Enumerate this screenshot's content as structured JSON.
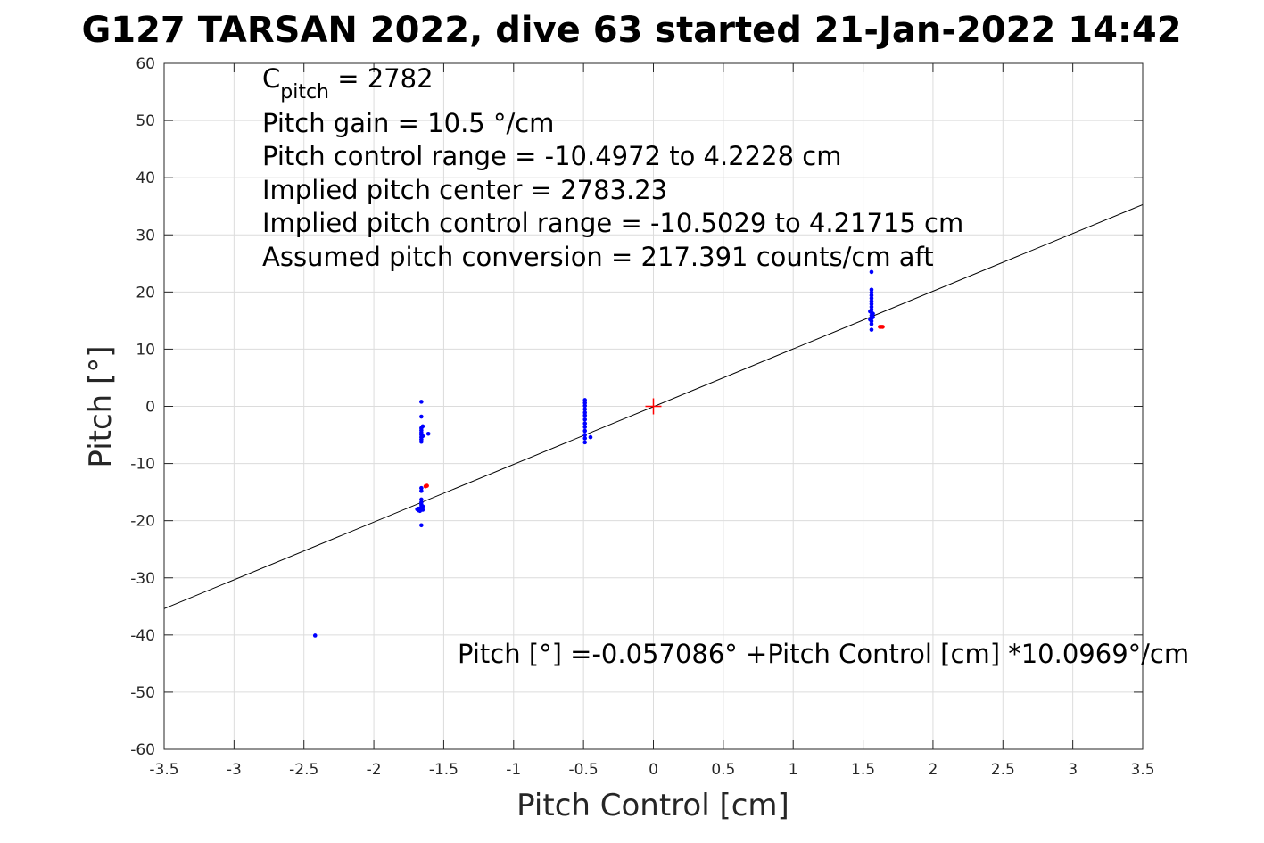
{
  "chart_data": {
    "type": "scatter",
    "title": "G127 TARSAN 2022, dive 63 started 21-Jan-2022 14:42",
    "xlabel": "Pitch Control [cm]",
    "ylabel": "Pitch [°]",
    "xlim": [
      -3.5,
      3.5
    ],
    "ylim": [
      -60,
      60
    ],
    "xticks": [
      -3.5,
      -3,
      -2.5,
      -2,
      -1.5,
      -1,
      -0.5,
      0,
      0.5,
      1,
      1.5,
      2,
      2.5,
      3,
      3.5
    ],
    "xtick_labels": [
      "-3.5",
      "-3",
      "-2.5",
      "-2",
      "-1.5",
      "-1",
      "-0.5",
      "0",
      "0.5",
      "1",
      "1.5",
      "2",
      "2.5",
      "3",
      "3.5"
    ],
    "yticks": [
      -60,
      -50,
      -40,
      -30,
      -20,
      -10,
      0,
      10,
      20,
      30,
      40,
      50,
      60
    ],
    "ytick_labels": [
      "-60",
      "-50",
      "-40",
      "-30",
      "-20",
      "-10",
      "0",
      "10",
      "20",
      "30",
      "40",
      "50",
      "60"
    ],
    "grid": true,
    "colors": {
      "blue": "#0000ff",
      "red": "#ff0000",
      "fit": "#000000",
      "grid": "#dcdcdc",
      "axis": "#262626"
    },
    "annotations": {
      "c_pitch_main": "C",
      "c_pitch_sub": "pitch",
      "c_pitch_value": " = 2782",
      "lines": [
        "Pitch gain = 10.5 °/cm",
        "Pitch control range = -10.4972 to 4.2228 cm",
        "Implied pitch center = 2783.23",
        "Implied pitch control range = -10.5029 to 4.21715 cm",
        "Assumed pitch conversion = 217.391 counts/cm aft"
      ],
      "equation": "Pitch [°] =-0.057086° +Pitch Control [cm] *10.0969°/cm"
    },
    "fit_line": {
      "intercept": -0.057086,
      "slope": 10.0969
    },
    "center_marker": {
      "x": 0,
      "y": 0,
      "color": "red",
      "shape": "plus"
    },
    "series": [
      {
        "color": "blue",
        "points": [
          [
            -2.42,
            -40.1
          ],
          [
            -1.66,
            0.8
          ],
          [
            -1.66,
            -1.8
          ],
          [
            -1.66,
            -3.8
          ],
          [
            -1.66,
            -4.2
          ],
          [
            -1.66,
            -4.6
          ],
          [
            -1.66,
            -5.0
          ],
          [
            -1.66,
            -5.4
          ],
          [
            -1.66,
            -5.8
          ],
          [
            -1.66,
            -6.2
          ],
          [
            -1.65,
            -3.5
          ],
          [
            -1.65,
            -5.2
          ],
          [
            -1.61,
            -4.8
          ],
          [
            -1.66,
            -14.3
          ],
          [
            -1.66,
            -14.8
          ],
          [
            -1.66,
            -16.3
          ],
          [
            -1.66,
            -16.8
          ],
          [
            -1.66,
            -17.2
          ],
          [
            -1.66,
            -17.6
          ],
          [
            -1.67,
            -18.0
          ],
          [
            -1.67,
            -18.3
          ],
          [
            -1.68,
            -17.9
          ],
          [
            -1.68,
            -18.2
          ],
          [
            -1.65,
            -17.5
          ],
          [
            -1.65,
            -18.1
          ],
          [
            -1.69,
            -18.0
          ],
          [
            -1.66,
            -20.8
          ],
          [
            -0.49,
            1.1
          ],
          [
            -0.49,
            0.6
          ],
          [
            -0.49,
            0.1
          ],
          [
            -0.49,
            -0.5
          ],
          [
            -0.49,
            -1.1
          ],
          [
            -0.49,
            -1.6
          ],
          [
            -0.49,
            -2.3
          ],
          [
            -0.49,
            -3.0
          ],
          [
            -0.49,
            -3.6
          ],
          [
            -0.49,
            -4.3
          ],
          [
            -0.49,
            -5.0
          ],
          [
            -0.49,
            -5.6
          ],
          [
            -0.49,
            -6.3
          ],
          [
            -0.45,
            -5.4
          ],
          [
            1.56,
            23.5
          ],
          [
            1.56,
            20.4
          ],
          [
            1.56,
            19.9
          ],
          [
            1.56,
            19.4
          ],
          [
            1.56,
            18.9
          ],
          [
            1.56,
            18.4
          ],
          [
            1.56,
            17.9
          ],
          [
            1.56,
            17.4
          ],
          [
            1.56,
            16.9
          ],
          [
            1.56,
            16.4
          ],
          [
            1.56,
            15.9
          ],
          [
            1.56,
            15.4
          ],
          [
            1.56,
            14.9
          ],
          [
            1.56,
            14.4
          ],
          [
            1.57,
            16.2
          ],
          [
            1.57,
            15.6
          ],
          [
            1.55,
            16.6
          ],
          [
            1.55,
            15.2
          ],
          [
            1.56,
            13.4
          ]
        ]
      },
      {
        "color": "red",
        "points": [
          [
            -1.63,
            -14.0
          ],
          [
            -1.62,
            -13.9
          ],
          [
            1.62,
            13.9
          ],
          [
            1.63,
            13.9
          ],
          [
            1.64,
            13.9
          ]
        ]
      }
    ]
  }
}
